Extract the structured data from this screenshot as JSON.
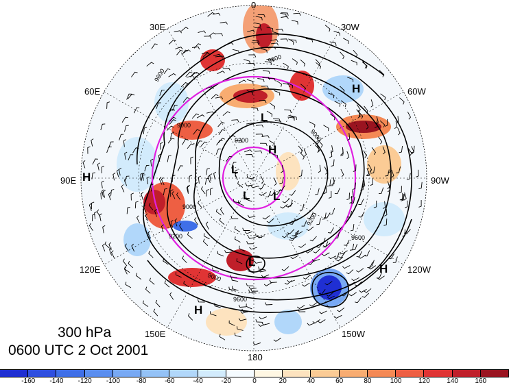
{
  "title": {
    "level": "300 hPa",
    "time": "0600 UTC 2 Oct 2001"
  },
  "longitude_labels": {
    "n0": "0",
    "w30": "30W",
    "w60": "60W",
    "w90": "90W",
    "w120": "120W",
    "w150": "150W",
    "s180": "180",
    "e150": "150E",
    "e120": "120E",
    "e90": "90E",
    "e60": "60E",
    "e30": "30E"
  },
  "pressure_centers": [
    "H",
    "H",
    "H",
    "H",
    "H",
    "L",
    "L",
    "L",
    "L",
    "L"
  ],
  "contour_labels": [
    "9600",
    "9000",
    "9000",
    "9200",
    "9000",
    "9200",
    "9600",
    "9000",
    "9600",
    "9200",
    "9600"
  ],
  "colorbar": {
    "ticks": [
      "-160",
      "-140",
      "-120",
      "-100",
      "-80",
      "-60",
      "-40",
      "-20",
      "0",
      "20",
      "40",
      "60",
      "80",
      "100",
      "120",
      "140",
      "160"
    ],
    "colors": [
      "#1f2fd3",
      "#2f4fe0",
      "#3f6fe8",
      "#5a8ef0",
      "#78a9f4",
      "#94c2f7",
      "#b1d7fa",
      "#d2ebfc",
      "#f5fbff",
      "#fff7e3",
      "#fde3bf",
      "#fbcb95",
      "#f8ac71",
      "#f48955",
      "#ee5f43",
      "#e03434",
      "#c01f2a",
      "#9a1420"
    ]
  },
  "colors": {
    "magenta_circle": "#e020e0",
    "contour": "#000000"
  }
}
